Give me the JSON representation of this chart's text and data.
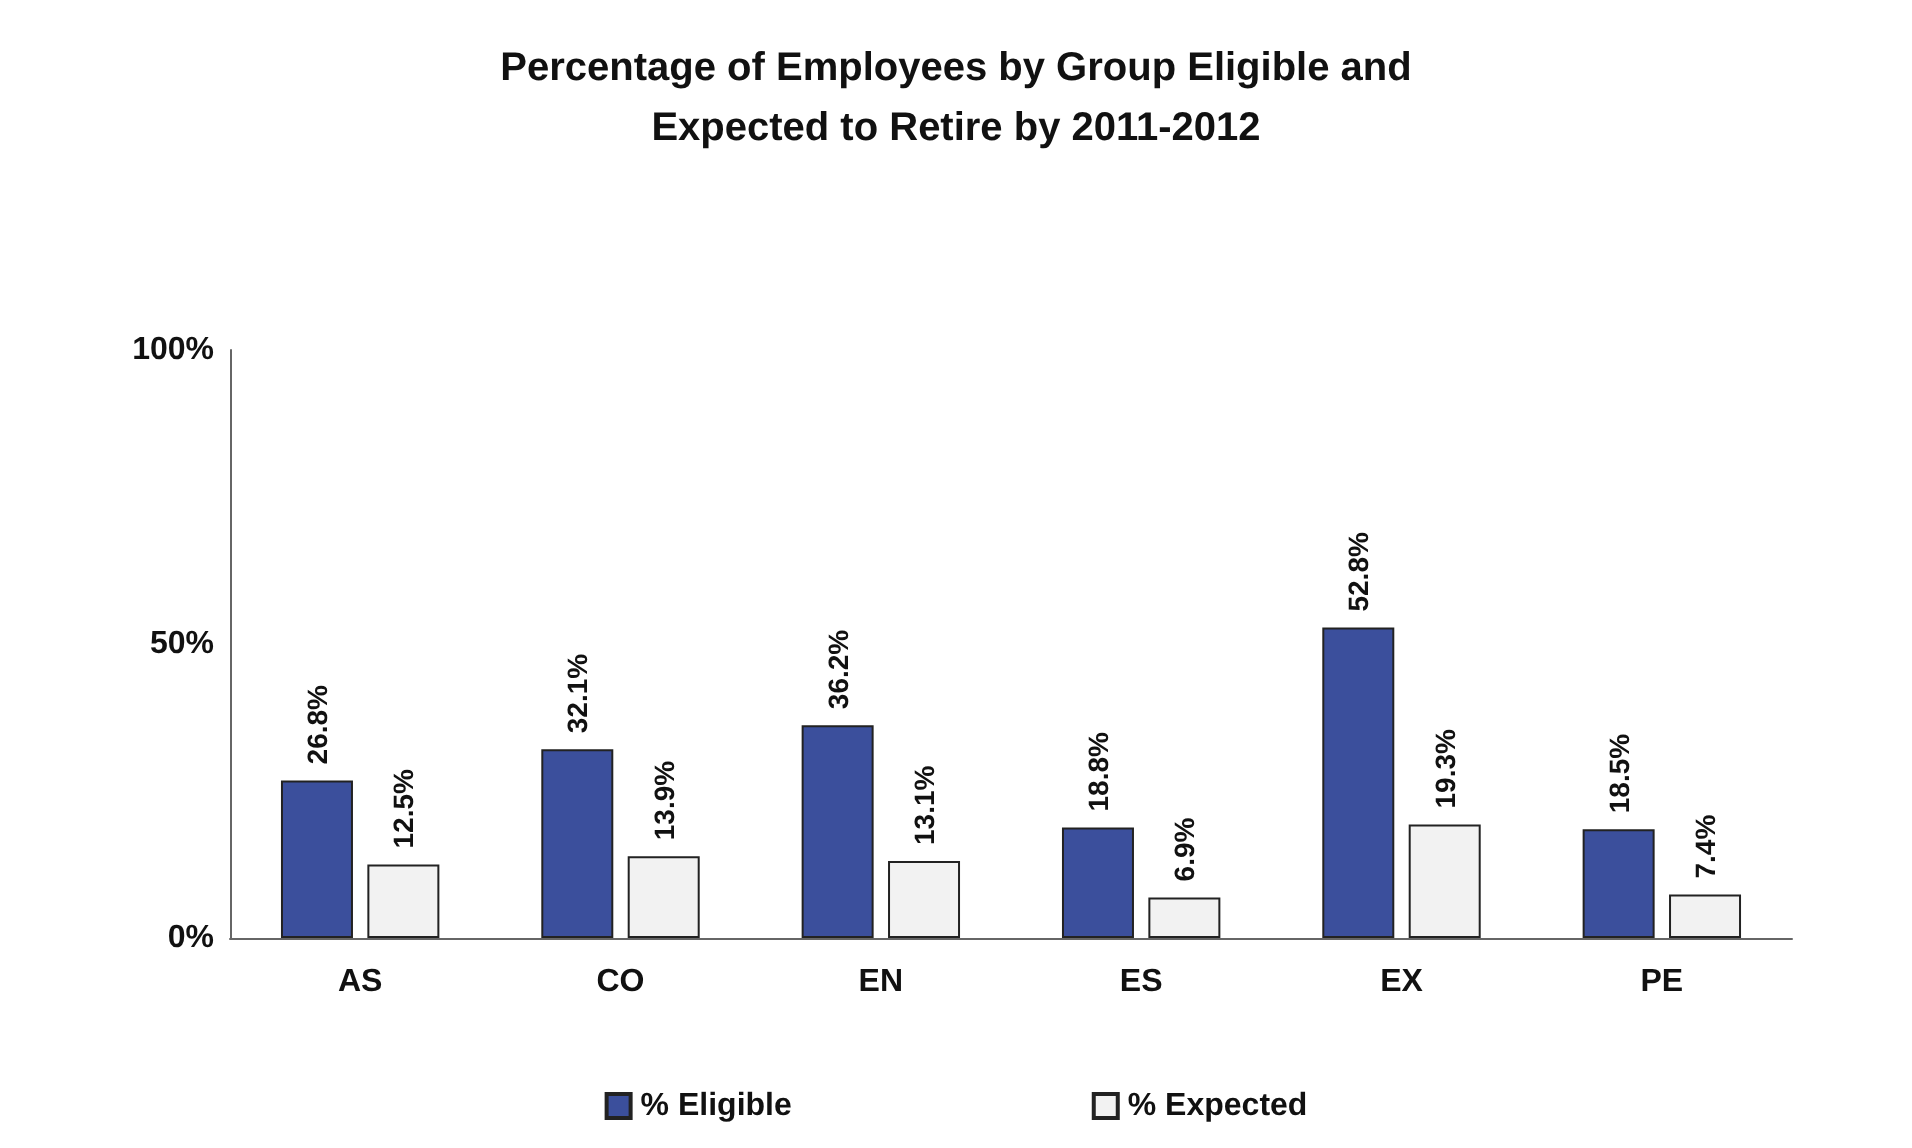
{
  "chart_data": {
    "type": "bar",
    "title": "Percentage of Employees by Group Eligible and\nExpected to Retire by 2011-2012",
    "categories": [
      "AS",
      "CO",
      "EN",
      "ES",
      "EX",
      "PE"
    ],
    "series": [
      {
        "name": "% Eligible",
        "color": "#3b4f9c",
        "values": [
          26.8,
          32.1,
          36.2,
          18.8,
          52.8,
          18.5
        ],
        "value_labels": [
          "26.8%",
          "32.1%",
          "36.2%",
          "18.8%",
          "52.8%",
          "18.5%"
        ]
      },
      {
        "name": "% Expected",
        "color": "#f2f2f2",
        "values": [
          12.5,
          13.9,
          13.1,
          6.9,
          19.3,
          7.4
        ],
        "value_labels": [
          "12.5%",
          "13.9%",
          "13.1%",
          "6.9%",
          "19.3%",
          "7.4%"
        ]
      }
    ],
    "ylim": [
      0,
      100
    ],
    "yticks": [
      {
        "value": 0,
        "label": "0%"
      },
      {
        "value": 50,
        "label": "50%"
      },
      {
        "value": 100,
        "label": "100%"
      }
    ],
    "grid": false,
    "legend": "bottom"
  }
}
